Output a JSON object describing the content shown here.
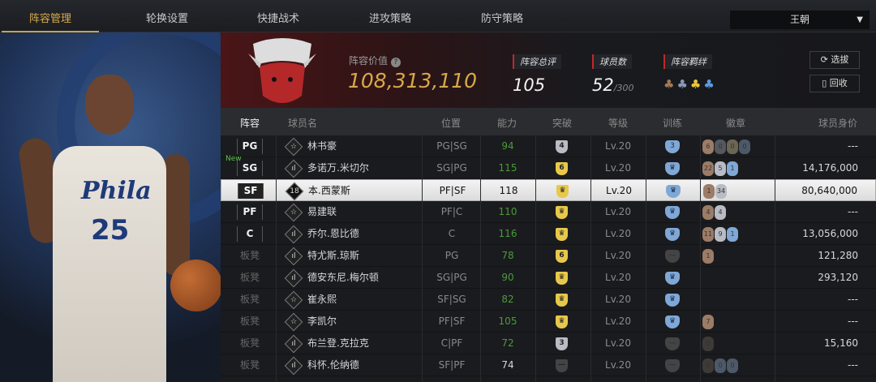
{
  "nav": {
    "tabs": [
      "阵容管理",
      "轮换设置",
      "快捷战术",
      "进攻策略",
      "防守策略"
    ],
    "active": 0,
    "team_select": "王朝"
  },
  "player_art": {
    "jersey_text": "Phila",
    "jersey_number": "25"
  },
  "header": {
    "logo_text": "CHICAGO BULLS",
    "lineup_value_label": "阵容价值",
    "lineup_value": "108,313,110",
    "rating_label": "阵容总评",
    "rating": "105",
    "players_label": "球员数",
    "players": "52",
    "players_max": "/300",
    "bond_label": "阵容羁绊",
    "bond_icons": [
      {
        "icon": "team-bond-icon",
        "color": "#a07a55"
      },
      {
        "icon": "team-bond-icon",
        "color": "#8a98b8"
      },
      {
        "icon": "team-bond-icon",
        "color": "#e8c53a"
      },
      {
        "icon": "team-bond-icon",
        "color": "#5a9ae0"
      }
    ],
    "draft_button": "选拔",
    "recycle_button": "回收"
  },
  "columns": {
    "lineup": "阵容",
    "name": "球员名",
    "position": "位置",
    "ability": "能力",
    "breakthrough": "突破",
    "level": "等级",
    "training": "训练",
    "badges": "徽章",
    "value": "球员身价"
  },
  "colors": {
    "accent": "#d7a848",
    "ability_green": "#4c9a3a",
    "gold": "#e8c84a",
    "silver": "#b9bcc4",
    "blue": "#7fa8d6",
    "bronze": "#9b7c66"
  },
  "rows": [
    {
      "slot": "PG",
      "new": "",
      "rank": "☆",
      "name": "林书豪",
      "position": "PG|SG",
      "ability": "94",
      "brk": {
        "type": "silver",
        "label": "4"
      },
      "trn": {
        "type": "blue",
        "label": "3"
      },
      "badges": [
        {
          "c": "bronze",
          "v": "6"
        },
        {
          "c": "dark",
          "v": "0"
        },
        {
          "c": "olive",
          "v": "0"
        },
        {
          "c": "slate",
          "v": "0"
        }
      ],
      "level": "Lv.20",
      "value": "---"
    },
    {
      "slot": "SG",
      "new": "New",
      "rank": "ıl",
      "name": "多诺万.米切尔",
      "position": "SG|PG",
      "ability": "115",
      "brk": {
        "type": "gold",
        "label": "6"
      },
      "trn": {
        "type": "blue",
        "label": "♛"
      },
      "badges": [
        {
          "c": "bronze",
          "v": "22"
        },
        {
          "c": "silver",
          "v": "5"
        },
        {
          "c": "blue",
          "v": "1"
        }
      ],
      "level": "Lv.20",
      "value": "14,176,000"
    },
    {
      "slot": "SF",
      "new": "",
      "rank": "18",
      "name": "本.西蒙斯",
      "position": "PF|SF",
      "ability": "118",
      "brk": {
        "type": "gold",
        "label": "♛"
      },
      "trn": {
        "type": "blue",
        "label": "♛"
      },
      "badges": [
        {
          "c": "bronze",
          "v": "1"
        },
        {
          "c": "silver",
          "v": "34"
        }
      ],
      "level": "Lv.20",
      "value": "80,640,000",
      "selected": true
    },
    {
      "slot": "PF",
      "new": "",
      "rank": "☆",
      "name": "易建联",
      "position": "PF|C",
      "ability": "110",
      "brk": {
        "type": "gold",
        "label": "♛"
      },
      "trn": {
        "type": "blue",
        "label": "♛"
      },
      "badges": [
        {
          "c": "bronze",
          "v": "4"
        },
        {
          "c": "silver",
          "v": "4"
        }
      ],
      "level": "Lv.20",
      "value": "---"
    },
    {
      "slot": "C",
      "new": "",
      "rank": "ıl",
      "name": "乔尔.恩比德",
      "position": "C",
      "ability": "116",
      "brk": {
        "type": "gold",
        "label": "♛"
      },
      "trn": {
        "type": "blue",
        "label": "♛"
      },
      "badges": [
        {
          "c": "bronze",
          "v": "11"
        },
        {
          "c": "silver",
          "v": "9"
        },
        {
          "c": "blue",
          "v": "1"
        }
      ],
      "level": "Lv.20",
      "value": "13,056,000"
    },
    {
      "slot": "板凳",
      "new": "",
      "rank": "ıl",
      "name": "特尤斯.琼斯",
      "position": "PG",
      "ability": "78",
      "brk": {
        "type": "gold",
        "label": "6"
      },
      "trn": {
        "type": "none",
        "label": "—"
      },
      "badges": [
        {
          "c": "bronze",
          "v": "1"
        }
      ],
      "level": "Lv.20",
      "value": "121,280"
    },
    {
      "slot": "板凳",
      "new": "",
      "rank": "ıl",
      "name": "德安东尼.梅尔顿",
      "position": "SG|PG",
      "ability": "90",
      "brk": {
        "type": "gold",
        "label": "♛"
      },
      "trn": {
        "type": "blue",
        "label": "♛"
      },
      "badges": [],
      "level": "Lv.20",
      "value": "293,120"
    },
    {
      "slot": "板凳",
      "new": "",
      "rank": "☆",
      "name": "崔永熙",
      "position": "SF|SG",
      "ability": "82",
      "brk": {
        "type": "gold",
        "label": "♛"
      },
      "trn": {
        "type": "blue",
        "label": "♛"
      },
      "badges": [],
      "level": "Lv.20",
      "value": "---"
    },
    {
      "slot": "板凳",
      "new": "",
      "rank": "☆",
      "name": "李凯尔",
      "position": "PF|SF",
      "ability": "105",
      "brk": {
        "type": "gold",
        "label": "♛"
      },
      "trn": {
        "type": "blue",
        "label": "♛"
      },
      "badges": [
        {
          "c": "bronze",
          "v": "7"
        }
      ],
      "level": "Lv.20",
      "value": "---"
    },
    {
      "slot": "板凳",
      "new": "",
      "rank": "ıl",
      "name": "布兰登.克拉克",
      "position": "C|PF",
      "ability": "72",
      "brk": {
        "type": "silver",
        "label": "3"
      },
      "trn": {
        "type": "none",
        "label": "—"
      },
      "badges": [
        {
          "c": "dim",
          "v": "0"
        }
      ],
      "level": "Lv.20",
      "value": "15,160"
    },
    {
      "slot": "板凳",
      "new": "",
      "rank": "ıl",
      "name": "科怀.伦纳德",
      "position": "SF|PF",
      "ability": "74",
      "ability_white": true,
      "brk": {
        "type": "none",
        "label": "—"
      },
      "trn": {
        "type": "none",
        "label": "—"
      },
      "badges": [
        {
          "c": "dim",
          "v": "0"
        },
        {
          "c": "slate",
          "v": "0"
        },
        {
          "c": "slate",
          "v": "0"
        }
      ],
      "level": "Lv.20",
      "value": "---"
    }
  ]
}
